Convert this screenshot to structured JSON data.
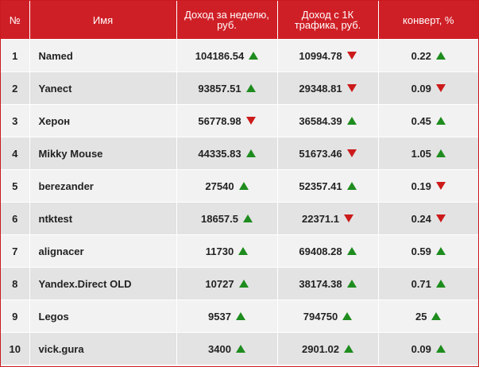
{
  "colors": {
    "header_bg": "#cf1f26",
    "up": "#1e8c1e",
    "down": "#cc1b1b",
    "row_odd": "#f2f2f2",
    "row_even": "#e3e3e3"
  },
  "header": {
    "num": "№",
    "name": "Имя",
    "week_income": "Доход за неделю, руб.",
    "income_per_1k": "Доход с 1К трафика, руб.",
    "conversion": "конверт, %"
  },
  "rows": [
    {
      "num": "1",
      "name": "Named",
      "week": "104186.54",
      "week_dir": "up",
      "k": "10994.78",
      "k_dir": "down",
      "conv": "0.22",
      "conv_dir": "up"
    },
    {
      "num": "2",
      "name": "Yanect",
      "week": "93857.51",
      "week_dir": "up",
      "k": "29348.81",
      "k_dir": "down",
      "conv": "0.09",
      "conv_dir": "down"
    },
    {
      "num": "3",
      "name": "Херон",
      "week": "56778.98",
      "week_dir": "down",
      "k": "36584.39",
      "k_dir": "up",
      "conv": "0.45",
      "conv_dir": "up"
    },
    {
      "num": "4",
      "name": "Mikky Mouse",
      "week": "44335.83",
      "week_dir": "up",
      "k": "51673.46",
      "k_dir": "down",
      "conv": "1.05",
      "conv_dir": "up"
    },
    {
      "num": "5",
      "name": "berezander",
      "week": "27540",
      "week_dir": "up",
      "k": "52357.41",
      "k_dir": "up",
      "conv": "0.19",
      "conv_dir": "down"
    },
    {
      "num": "6",
      "name": "ntktest",
      "week": "18657.5",
      "week_dir": "up",
      "k": "22371.1",
      "k_dir": "down",
      "conv": "0.24",
      "conv_dir": "down"
    },
    {
      "num": "7",
      "name": "alignacer",
      "week": "11730",
      "week_dir": "up",
      "k": "69408.28",
      "k_dir": "up",
      "conv": "0.59",
      "conv_dir": "up"
    },
    {
      "num": "8",
      "name": "Yandex.Direct OLD",
      "week": "10727",
      "week_dir": "up",
      "k": "38174.38",
      "k_dir": "up",
      "conv": "0.71",
      "conv_dir": "up"
    },
    {
      "num": "9",
      "name": "Legos",
      "week": "9537",
      "week_dir": "up",
      "k": "794750",
      "k_dir": "up",
      "conv": "25",
      "conv_dir": "up"
    },
    {
      "num": "10",
      "name": "vick.gura",
      "week": "3400",
      "week_dir": "up",
      "k": "2901.02",
      "k_dir": "up",
      "conv": "0.09",
      "conv_dir": "up"
    }
  ]
}
